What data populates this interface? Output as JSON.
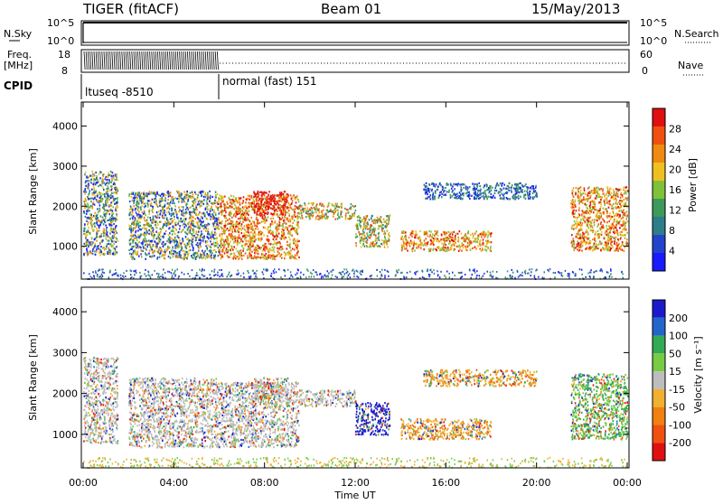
{
  "header": {
    "radar": "TIGER (fitACF)",
    "beam": "Beam 01",
    "date": "15/May/2013"
  },
  "noise_panel": {
    "left_label": "N.Sky",
    "right_label": "N.Search",
    "left_ticks": [
      "10^5",
      "10^0"
    ],
    "right_ticks": [
      "10^5",
      "10^0"
    ]
  },
  "freq_panel": {
    "left_label_1": "Freq.",
    "left_label_2": "[MHz]",
    "right_label": "Nave",
    "left_ticks": [
      "18",
      "8"
    ],
    "right_ticks": [
      "60",
      "0"
    ]
  },
  "cpid": {
    "label": "CPID",
    "segments": [
      "ltuseq -8510",
      "normal (fast) 151"
    ]
  },
  "colors": {
    "power": [
      "#1a1aff",
      "#2244cc",
      "#2e7d8a",
      "#3c9a5a",
      "#7fc23a",
      "#f0c020",
      "#f08a10",
      "#f05010",
      "#e01010"
    ],
    "velocity_pos": [
      "#1a1acc",
      "#2266cc",
      "#33aa55",
      "#77cc44"
    ],
    "velocity_zero": "#bdbdbd",
    "velocity_neg": [
      "#f0b030",
      "#f08010",
      "#f05010",
      "#e01010"
    ]
  },
  "chart_data": [
    {
      "type": "heatmap",
      "panel": "power",
      "ylabel": "Slant Range [km]",
      "yticks": [
        "4000",
        "3000",
        "2000",
        "1000"
      ],
      "ytick_values": [
        4000,
        3000,
        2000,
        1000
      ],
      "ylim": [
        180,
        4600
      ],
      "xlim": [
        0,
        24
      ],
      "colorbar": {
        "label": "Power [dB]",
        "ticks": [
          "28",
          "24",
          "20",
          "16",
          "12",
          "8",
          "4"
        ],
        "range": [
          0,
          30
        ]
      },
      "regions": [
        {
          "t": [
            0.0,
            1.5
          ],
          "r": [
            800,
            2900
          ],
          "level": "mixed-low"
        },
        {
          "t": [
            2.0,
            6.0
          ],
          "r": [
            700,
            2400
          ],
          "level": "mixed-low"
        },
        {
          "t": [
            6.0,
            9.5
          ],
          "r": [
            700,
            2300
          ],
          "level": "high"
        },
        {
          "t": [
            7.5,
            9.0
          ],
          "r": [
            1800,
            2400
          ],
          "level": "very-high"
        },
        {
          "t": [
            9.5,
            12.0
          ],
          "r": [
            1700,
            2100
          ],
          "level": "mid"
        },
        {
          "t": [
            12.0,
            13.5
          ],
          "r": [
            1000,
            1800
          ],
          "level": "mid"
        },
        {
          "t": [
            14.0,
            18.0
          ],
          "r": [
            900,
            1400
          ],
          "level": "high"
        },
        {
          "t": [
            15.0,
            20.0
          ],
          "r": [
            2200,
            2600
          ],
          "level": "low"
        },
        {
          "t": [
            21.5,
            24.0
          ],
          "r": [
            900,
            2500
          ],
          "level": "high"
        }
      ]
    },
    {
      "type": "heatmap",
      "panel": "velocity",
      "ylabel": "Slant Range [km]",
      "yticks": [
        "4000",
        "3000",
        "2000",
        "1000"
      ],
      "ytick_values": [
        4000,
        3000,
        2000,
        1000
      ],
      "ylim": [
        180,
        4600
      ],
      "xlim": [
        0,
        24
      ],
      "xlabel": "Time UT",
      "xticks": [
        "00:00",
        "04:00",
        "08:00",
        "12:00",
        "16:00",
        "20:00",
        "00:00"
      ],
      "xtick_values": [
        0,
        4,
        8,
        12,
        16,
        20,
        24
      ],
      "colorbar": {
        "label": "Velocity [m s⁻¹]",
        "ticks": [
          "200",
          "100",
          "50",
          "15",
          "-15",
          "-50",
          "-100",
          "-200"
        ]
      }
    }
  ]
}
